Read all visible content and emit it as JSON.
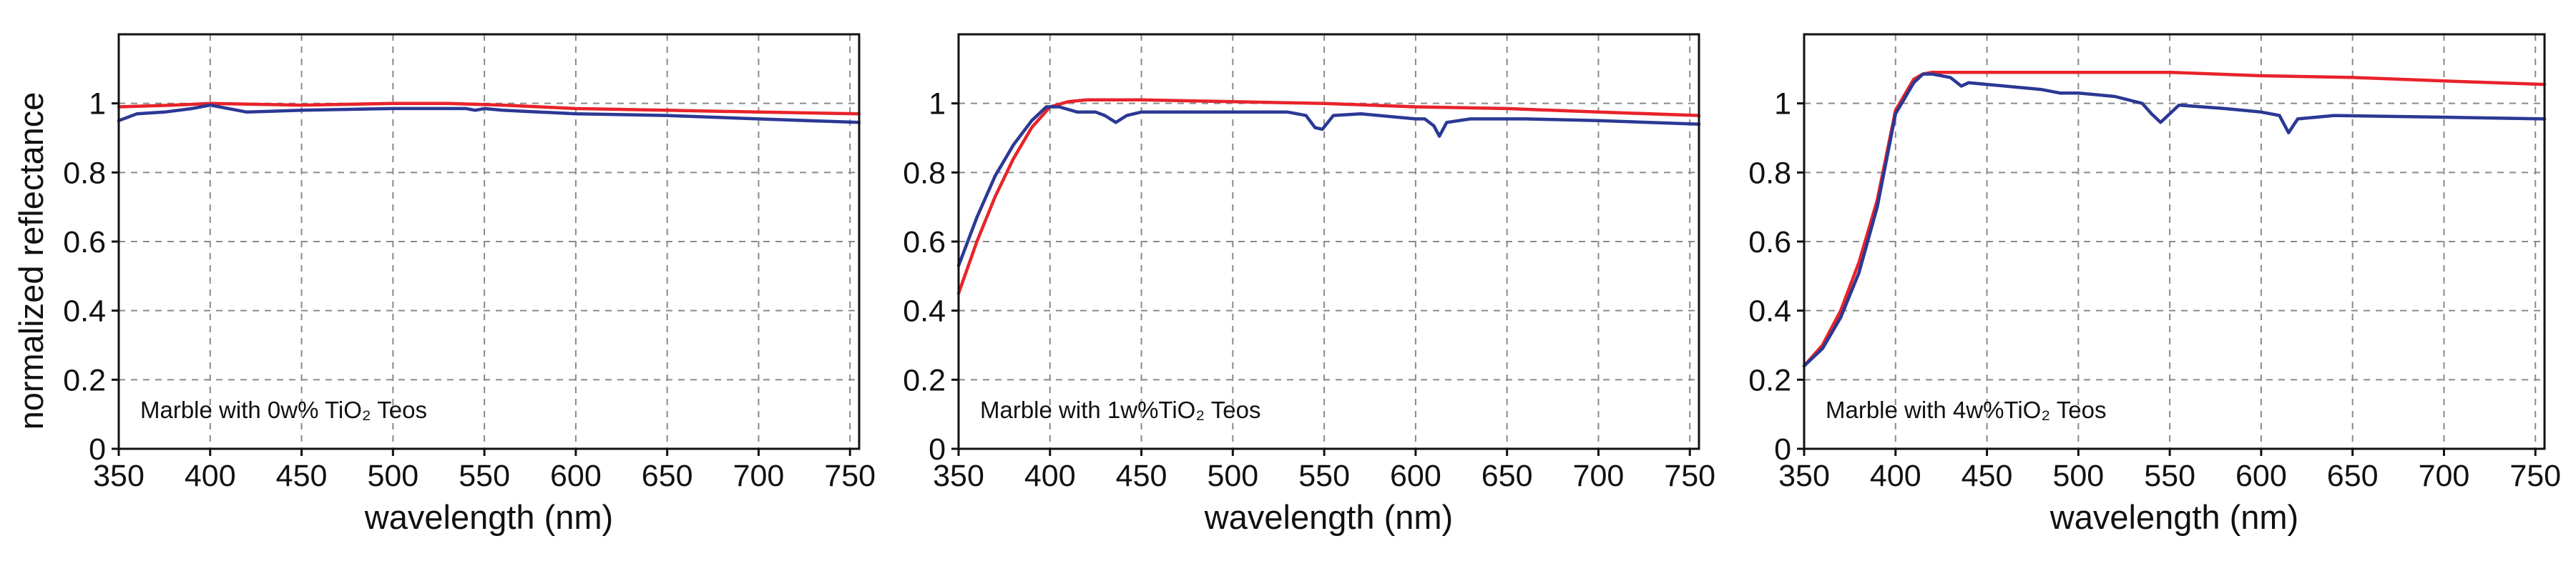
{
  "shared": {
    "ylabel": "normalized reflectance",
    "xlabel": "wavelength (nm)",
    "colors": {
      "red_series": "#e8232a",
      "blue_series": "#2b3894"
    }
  },
  "chart_data": [
    {
      "type": "line",
      "annotation": "Marble with 0w% TiO₂ Teos",
      "xlabel": "wavelength (nm)",
      "ylabel": "normalized reflectance",
      "xlim": [
        350,
        755
      ],
      "ylim": [
        0,
        1.2
      ],
      "xticks": [
        350,
        400,
        450,
        500,
        550,
        600,
        650,
        700,
        750
      ],
      "yticks": [
        0,
        0.2,
        0.4,
        0.6,
        0.8,
        1
      ],
      "ytick_labels": [
        "0",
        "0.2",
        "0.4",
        "0.6",
        "0.8",
        "1"
      ],
      "grid": true,
      "series": [
        {
          "name": "red",
          "color": "#e8232a",
          "x": [
            350,
            380,
            400,
            450,
            500,
            530,
            560,
            600,
            650,
            700,
            755
          ],
          "y": [
            0.99,
            0.995,
            1.0,
            0.995,
            1.0,
            1.0,
            0.995,
            0.985,
            0.98,
            0.975,
            0.97
          ]
        },
        {
          "name": "blue",
          "color": "#2b3894",
          "x": [
            350,
            360,
            375,
            390,
            400,
            410,
            420,
            450,
            500,
            540,
            545,
            550,
            560,
            600,
            650,
            700,
            755
          ],
          "y": [
            0.95,
            0.97,
            0.975,
            0.985,
            0.995,
            0.985,
            0.975,
            0.98,
            0.985,
            0.985,
            0.98,
            0.985,
            0.98,
            0.97,
            0.965,
            0.955,
            0.945
          ]
        }
      ]
    },
    {
      "type": "line",
      "annotation": "Marble with 1w%TiO₂ Teos",
      "xlabel": "wavelength (nm)",
      "ylabel": "",
      "xlim": [
        350,
        755
      ],
      "ylim": [
        0,
        1.2
      ],
      "xticks": [
        350,
        400,
        450,
        500,
        550,
        600,
        650,
        700,
        750
      ],
      "yticks": [
        0,
        0.2,
        0.4,
        0.6,
        0.8,
        1
      ],
      "ytick_labels": [
        "0",
        "0.2",
        "0.4",
        "0.6",
        "0.8",
        "1"
      ],
      "grid": true,
      "series": [
        {
          "name": "red",
          "color": "#e8232a",
          "x": [
            350,
            360,
            370,
            380,
            390,
            400,
            410,
            420,
            450,
            500,
            550,
            600,
            650,
            700,
            755
          ],
          "y": [
            0.45,
            0.6,
            0.73,
            0.84,
            0.93,
            0.99,
            1.005,
            1.01,
            1.01,
            1.005,
            1.0,
            0.99,
            0.985,
            0.975,
            0.965
          ]
        },
        {
          "name": "blue",
          "color": "#2b3894",
          "x": [
            350,
            360,
            370,
            380,
            390,
            398,
            405,
            415,
            425,
            430,
            436,
            442,
            450,
            480,
            500,
            530,
            540,
            545,
            549,
            555,
            570,
            600,
            605,
            610,
            613,
            617,
            630,
            660,
            700,
            755
          ],
          "y": [
            0.53,
            0.67,
            0.79,
            0.88,
            0.95,
            0.99,
            0.99,
            0.975,
            0.975,
            0.965,
            0.945,
            0.965,
            0.975,
            0.975,
            0.975,
            0.975,
            0.965,
            0.93,
            0.925,
            0.965,
            0.97,
            0.955,
            0.955,
            0.935,
            0.905,
            0.945,
            0.955,
            0.955,
            0.95,
            0.94
          ]
        }
      ]
    },
    {
      "type": "line",
      "annotation": "Marble with 4w%TiO₂ Teos",
      "xlabel": "wavelength (nm)",
      "ylabel": "",
      "xlim": [
        350,
        755
      ],
      "ylim": [
        0,
        1.2
      ],
      "xticks": [
        350,
        400,
        450,
        500,
        550,
        600,
        650,
        700,
        750
      ],
      "yticks": [
        0,
        0.2,
        0.4,
        0.6,
        0.8,
        1
      ],
      "ytick_labels": [
        "0",
        "0.2",
        "0.4",
        "0.6",
        "0.8",
        "1"
      ],
      "grid": true,
      "series": [
        {
          "name": "red",
          "color": "#e8232a",
          "x": [
            350,
            360,
            370,
            380,
            390,
            400,
            410,
            415,
            420,
            450,
            500,
            550,
            600,
            650,
            700,
            755
          ],
          "y": [
            0.24,
            0.3,
            0.4,
            0.54,
            0.72,
            0.98,
            1.07,
            1.085,
            1.09,
            1.09,
            1.09,
            1.09,
            1.08,
            1.075,
            1.065,
            1.055
          ]
        },
        {
          "name": "blue",
          "color": "#2b3894",
          "x": [
            350,
            360,
            370,
            380,
            390,
            400,
            410,
            415,
            420,
            430,
            436,
            440,
            450,
            480,
            490,
            500,
            520,
            535,
            540,
            545,
            550,
            555,
            580,
            600,
            610,
            615,
            620,
            640,
            700,
            755
          ],
          "y": [
            0.24,
            0.29,
            0.38,
            0.51,
            0.7,
            0.97,
            1.06,
            1.085,
            1.085,
            1.075,
            1.05,
            1.06,
            1.055,
            1.04,
            1.03,
            1.03,
            1.02,
            1.0,
            0.97,
            0.945,
            0.97,
            0.995,
            0.985,
            0.975,
            0.965,
            0.915,
            0.955,
            0.965,
            0.96,
            0.955
          ]
        }
      ]
    }
  ]
}
